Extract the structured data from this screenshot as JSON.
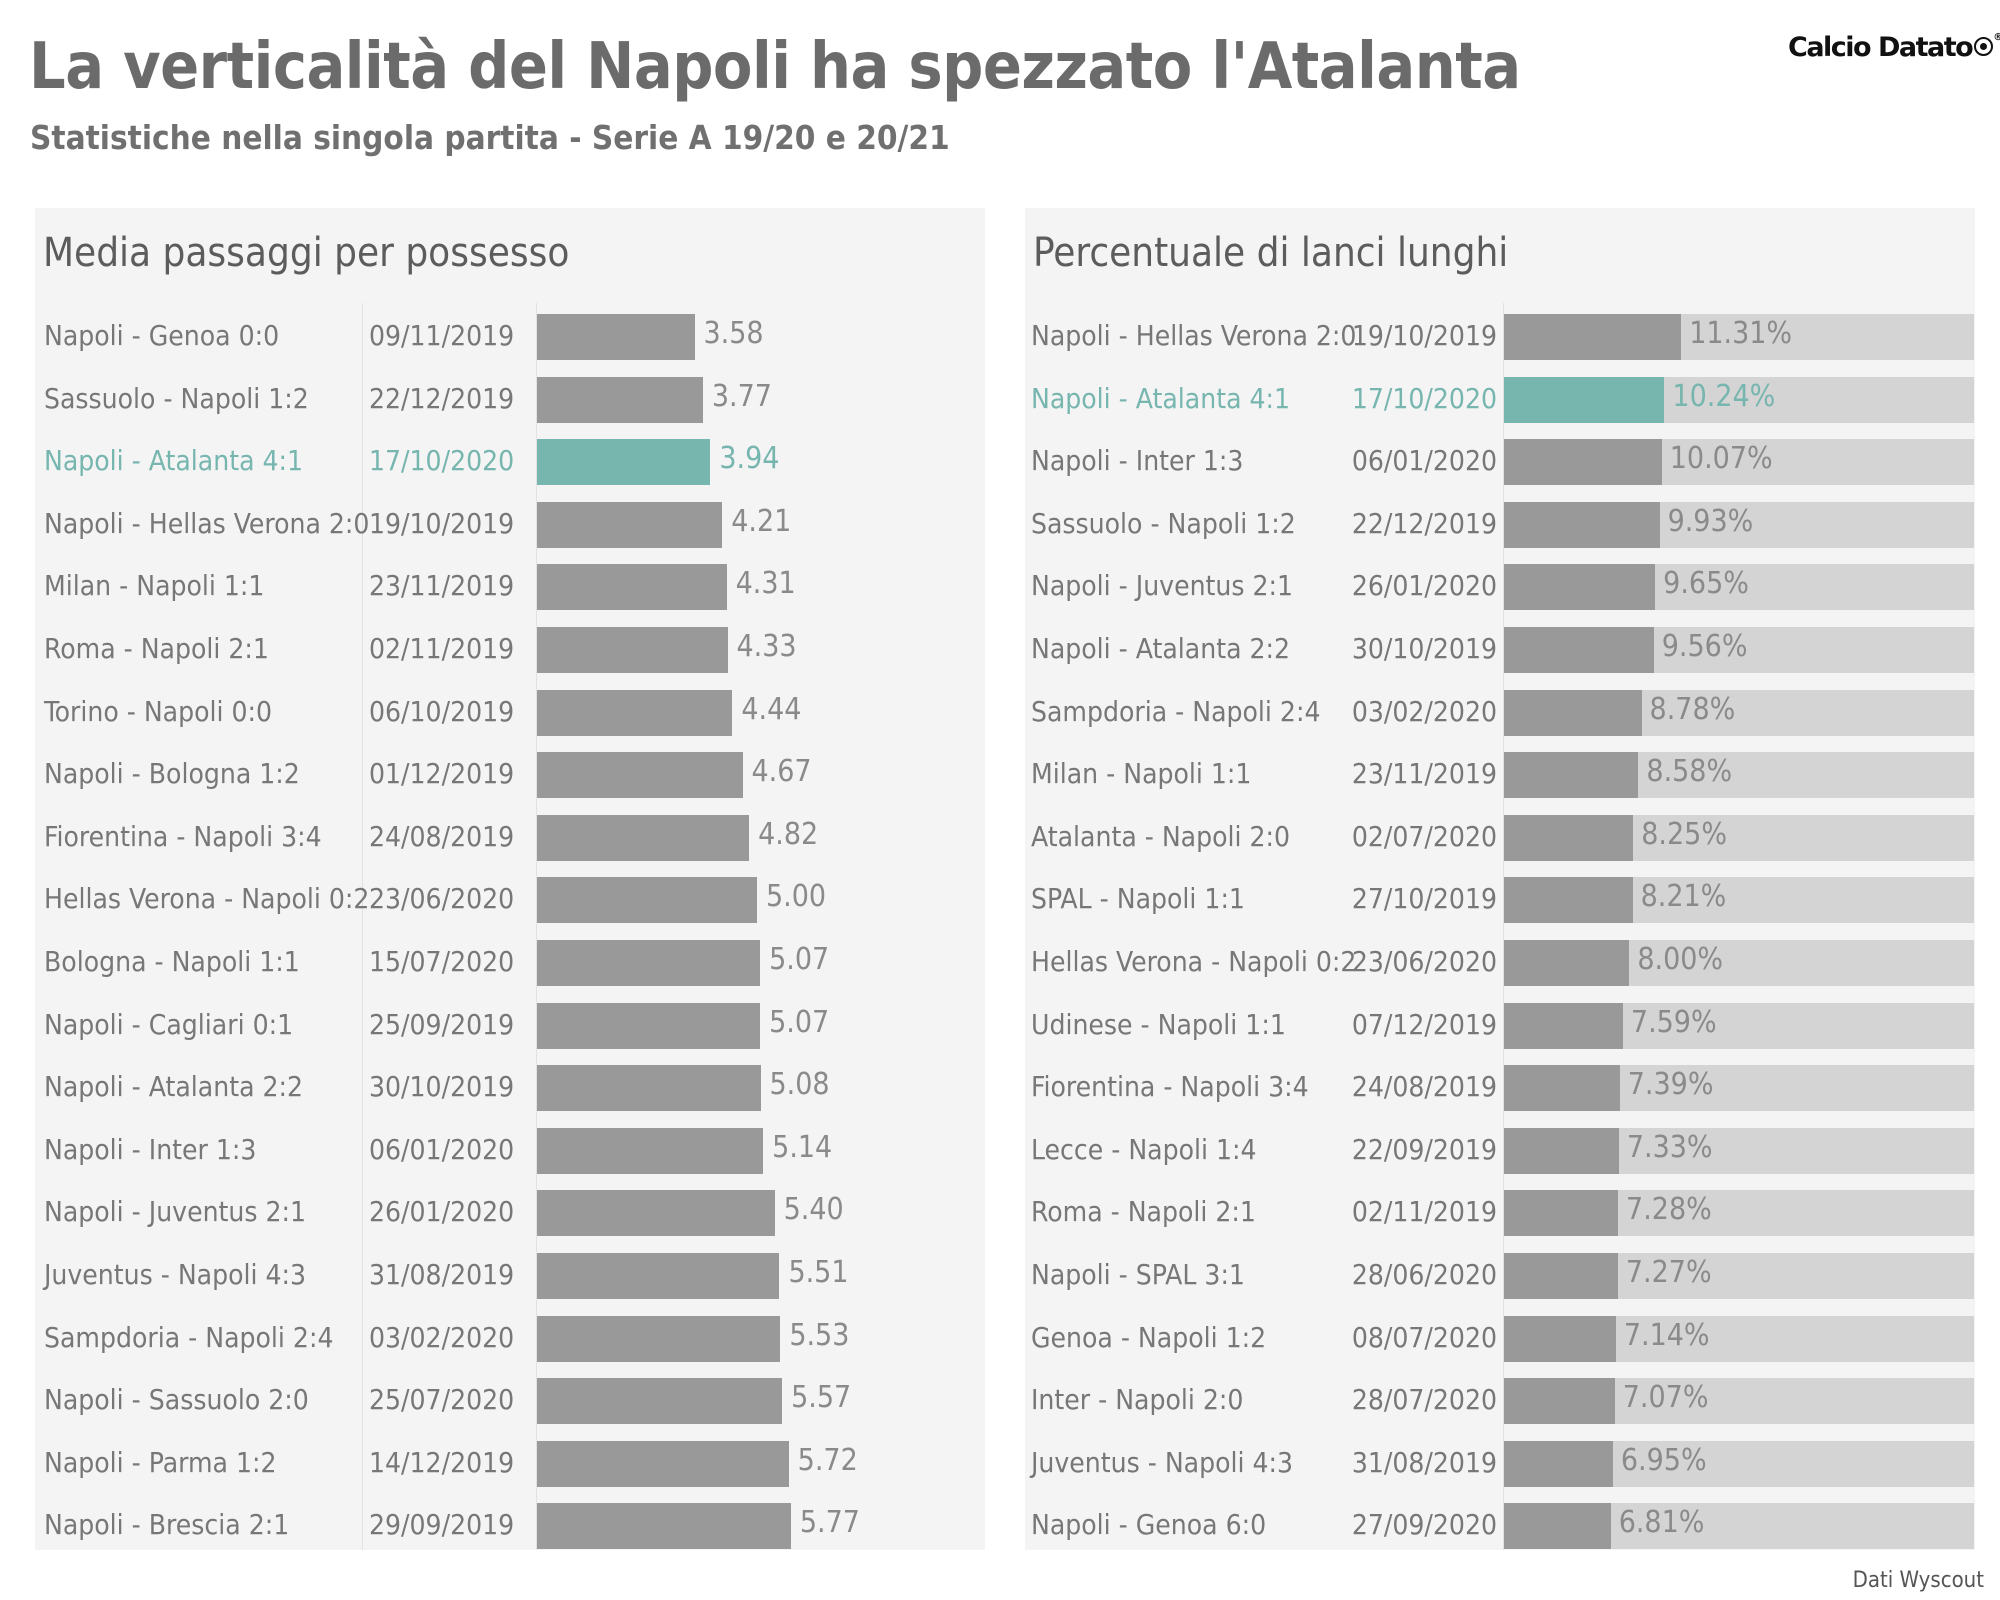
{
  "header": {
    "title": "La verticalità del Napoli ha spezzato l'Atalanta",
    "subtitle": "Statistiche nella singola partita - Serie A 19/20 e 20/21",
    "logo_text": "Calcio Datato",
    "source": "Dati Wyscout"
  },
  "colors": {
    "bar": "#999999",
    "highlight": "#77b5af",
    "track": "#d4d4d4",
    "panel_bg": "#f4f4f4"
  },
  "chart_data": [
    {
      "type": "bar",
      "orientation": "horizontal",
      "title": "Media passaggi per possesso",
      "xlim": [
        0,
        7.5
      ],
      "highlight": "Napoli - Atalanta 4:1",
      "categories": [
        "Napoli - Genoa 0:0",
        "Sassuolo - Napoli 1:2",
        "Napoli - Atalanta 4:1",
        "Napoli - Hellas Verona 2:0",
        "Milan - Napoli 1:1",
        "Roma - Napoli 2:1",
        "Torino - Napoli 0:0",
        "Napoli - Bologna 1:2",
        "Fiorentina - Napoli 3:4",
        "Hellas Verona - Napoli 0:2",
        "Bologna - Napoli 1:1",
        "Napoli - Cagliari 0:1",
        "Napoli - Atalanta 2:2",
        "Napoli - Inter 1:3",
        "Napoli - Juventus 2:1",
        "Juventus - Napoli 4:3",
        "Sampdoria - Napoli 2:4",
        "Napoli - Sassuolo 2:0",
        "Napoli - Parma 1:2",
        "Napoli - Brescia 2:1"
      ],
      "dates": [
        "09/11/2019",
        "22/12/2019",
        "17/10/2020",
        "19/10/2019",
        "23/11/2019",
        "02/11/2019",
        "06/10/2019",
        "01/12/2019",
        "24/08/2019",
        "23/06/2020",
        "15/07/2020",
        "25/09/2019",
        "30/10/2019",
        "06/01/2020",
        "26/01/2020",
        "31/08/2019",
        "03/02/2020",
        "25/07/2020",
        "14/12/2019",
        "29/09/2019"
      ],
      "values": [
        3.58,
        3.77,
        3.94,
        4.21,
        4.31,
        4.33,
        4.44,
        4.67,
        4.82,
        5.0,
        5.07,
        5.07,
        5.08,
        5.14,
        5.4,
        5.51,
        5.53,
        5.57,
        5.72,
        5.77
      ],
      "value_labels": [
        "3.58",
        "3.77",
        "3.94",
        "4.21",
        "4.31",
        "4.33",
        "4.44",
        "4.67",
        "4.82",
        "5.00",
        "5.07",
        "5.07",
        "5.08",
        "5.14",
        "5.40",
        "5.51",
        "5.53",
        "5.57",
        "5.72",
        "5.77"
      ]
    },
    {
      "type": "bar",
      "orientation": "horizontal",
      "title": "Percentuale di lanci lunghi",
      "xlim": [
        0,
        100
      ],
      "unit": "%",
      "highlight": "Napoli - Atalanta 4:1",
      "categories": [
        "Napoli - Hellas Verona 2:0",
        "Napoli - Atalanta 4:1",
        "Napoli - Inter 1:3",
        "Sassuolo - Napoli 1:2",
        "Napoli - Juventus 2:1",
        "Napoli - Atalanta 2:2",
        "Sampdoria - Napoli 2:4",
        "Milan - Napoli 1:1",
        "Atalanta - Napoli 2:0",
        "SPAL - Napoli 1:1",
        "Hellas Verona - Napoli 0:2",
        "Udinese - Napoli 1:1",
        "Fiorentina - Napoli 3:4",
        "Lecce - Napoli 1:4",
        "Roma - Napoli 2:1",
        "Napoli - SPAL 3:1",
        "Genoa - Napoli 1:2",
        "Inter - Napoli 2:0",
        "Juventus - Napoli 4:3",
        "Napoli - Genoa 6:0"
      ],
      "dates": [
        "19/10/2019",
        "17/10/2020",
        "06/01/2020",
        "22/12/2019",
        "26/01/2020",
        "30/10/2019",
        "03/02/2020",
        "23/11/2019",
        "02/07/2020",
        "27/10/2019",
        "23/06/2020",
        "07/12/2019",
        "24/08/2019",
        "22/09/2019",
        "02/11/2019",
        "28/06/2020",
        "08/07/2020",
        "28/07/2020",
        "31/08/2019",
        "27/09/2020"
      ],
      "values": [
        11.31,
        10.24,
        10.07,
        9.93,
        9.65,
        9.56,
        8.78,
        8.58,
        8.25,
        8.21,
        8.0,
        7.59,
        7.39,
        7.33,
        7.28,
        7.27,
        7.14,
        7.07,
        6.95,
        6.81
      ],
      "value_labels": [
        "11.31%",
        "10.24%",
        "10.07%",
        "9.93%",
        "9.65%",
        "9.56%",
        "8.78%",
        "8.58%",
        "8.25%",
        "8.21%",
        "8.00%",
        "7.59%",
        "7.39%",
        "7.33%",
        "7.28%",
        "7.27%",
        "7.14%",
        "7.07%",
        "6.95%",
        "6.81%"
      ]
    }
  ]
}
